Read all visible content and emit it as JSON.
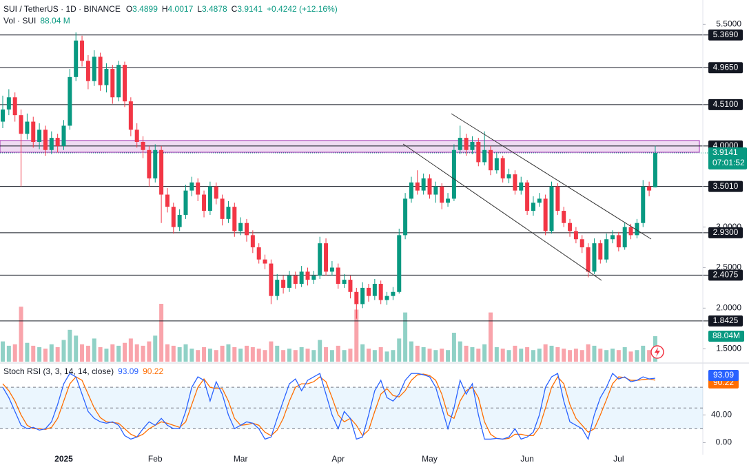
{
  "chart_data": [
    {
      "type": "candlestick",
      "symbol": "SUI / TetherUS · 1D · BINANCE",
      "header": [
        {
          "name": "O",
          "text": "3.4899"
        },
        {
          "name": "H",
          "text": "4.0017"
        },
        {
          "name": "L",
          "text": "3.4878"
        },
        {
          "name": "C",
          "text": "3.9141"
        }
      ],
      "change": "+0.4242 (+12.16%)",
      "up_color": "#089981",
      "down_color": "#f23645",
      "ylim": [
        1.34,
        5.8
      ],
      "yticks": [
        {
          "value": 1.5,
          "label": "1.5000"
        },
        {
          "value": 2.0,
          "label": "2.0000"
        },
        {
          "value": 2.5,
          "label": "2.5000"
        },
        {
          "value": 3.0,
          "label": "3.0000"
        },
        {
          "value": 5.5,
          "label": "5.5000"
        }
      ],
      "levels": [
        {
          "value": 5.369,
          "label": "5.3690"
        },
        {
          "value": 4.965,
          "label": "4.9650"
        },
        {
          "value": 4.51,
          "label": "4.5100"
        },
        {
          "value": 4.0,
          "label": "4.0000"
        },
        {
          "value": 3.501,
          "label": "3.5010"
        },
        {
          "value": 2.93,
          "label": "2.9300"
        },
        {
          "value": 2.4075,
          "label": "2.4075"
        },
        {
          "value": 1.8425,
          "label": "1.8425"
        }
      ],
      "last_price": {
        "value": 3.9141,
        "label": "3.9141",
        "countdown": "07:01:52"
      },
      "categories": [
        null,
        null,
        null,
        null,
        null,
        null,
        null,
        null,
        null,
        null,
        "2025",
        null,
        null,
        null,
        null,
        null,
        null,
        null,
        null,
        null,
        null,
        null,
        null,
        null,
        null,
        "Feb",
        null,
        null,
        null,
        null,
        null,
        null,
        null,
        null,
        null,
        null,
        null,
        null,
        null,
        "Mar",
        null,
        null,
        null,
        null,
        null,
        null,
        null,
        null,
        null,
        null,
        null,
        null,
        null,
        null,
        null,
        "Apr",
        null,
        null,
        null,
        null,
        null,
        null,
        null,
        null,
        null,
        null,
        null,
        null,
        null,
        null,
        "May",
        null,
        null,
        null,
        null,
        null,
        null,
        null,
        null,
        null,
        null,
        null,
        null,
        null,
        null,
        null,
        "Jun",
        null,
        null,
        null,
        null,
        null,
        null,
        null,
        null,
        null,
        null,
        null,
        null,
        null,
        null,
        "Jul",
        null,
        null,
        null,
        null,
        null,
        null
      ],
      "ohlc": [
        [
          4.3,
          4.62,
          4.22,
          4.45
        ],
        [
          4.45,
          4.7,
          4.38,
          4.6
        ],
        [
          4.6,
          4.66,
          4.3,
          4.38
        ],
        [
          4.38,
          4.45,
          3.5,
          4.15
        ],
        [
          4.15,
          4.4,
          4.08,
          4.3
        ],
        [
          4.3,
          4.36,
          3.98,
          4.05
        ],
        [
          4.05,
          4.28,
          3.96,
          4.2
        ],
        [
          4.2,
          4.25,
          3.88,
          3.95
        ],
        [
          3.95,
          4.18,
          3.9,
          4.1
        ],
        [
          4.1,
          4.15,
          3.92,
          4.0
        ],
        [
          4.0,
          4.32,
          3.95,
          4.25
        ],
        [
          4.25,
          4.95,
          4.2,
          4.85
        ],
        [
          4.85,
          5.4,
          4.8,
          5.3
        ],
        [
          5.3,
          5.36,
          4.98,
          5.05
        ],
        [
          5.05,
          5.12,
          4.7,
          4.8
        ],
        [
          4.8,
          5.18,
          4.74,
          5.1
        ],
        [
          5.1,
          5.15,
          4.68,
          4.75
        ],
        [
          4.75,
          5.02,
          4.66,
          4.95
        ],
        [
          4.95,
          5.0,
          4.52,
          4.6
        ],
        [
          4.6,
          5.05,
          4.55,
          5.0
        ],
        [
          5.0,
          5.04,
          4.48,
          4.55
        ],
        [
          4.55,
          4.6,
          4.12,
          4.2
        ],
        [
          4.2,
          4.28,
          3.98,
          4.05
        ],
        [
          4.05,
          4.12,
          3.85,
          3.95
        ],
        [
          3.95,
          4.0,
          3.5,
          3.6
        ],
        [
          3.6,
          4.02,
          3.55,
          3.95
        ],
        [
          3.95,
          4.0,
          3.05,
          3.4
        ],
        [
          3.4,
          3.48,
          3.18,
          3.25
        ],
        [
          3.25,
          3.3,
          2.92,
          3.0
        ],
        [
          3.0,
          3.22,
          2.95,
          3.15
        ],
        [
          3.15,
          3.52,
          3.1,
          3.45
        ],
        [
          3.45,
          3.62,
          3.38,
          3.55
        ],
        [
          3.55,
          3.6,
          3.32,
          3.4
        ],
        [
          3.4,
          3.45,
          3.12,
          3.2
        ],
        [
          3.2,
          3.56,
          3.15,
          3.5
        ],
        [
          3.5,
          3.55,
          3.28,
          3.35
        ],
        [
          3.35,
          3.4,
          3.02,
          3.1
        ],
        [
          3.1,
          3.32,
          3.05,
          3.25
        ],
        [
          3.25,
          3.3,
          2.88,
          2.95
        ],
        [
          2.95,
          3.12,
          2.9,
          3.05
        ],
        [
          3.05,
          3.1,
          2.82,
          2.9
        ],
        [
          2.9,
          2.96,
          2.68,
          2.75
        ],
        [
          2.75,
          2.8,
          2.55,
          2.6
        ],
        [
          2.6,
          2.66,
          2.48,
          2.55
        ],
        [
          2.55,
          2.6,
          2.05,
          2.15
        ],
        [
          2.15,
          2.42,
          2.1,
          2.35
        ],
        [
          2.35,
          2.4,
          2.18,
          2.25
        ],
        [
          2.25,
          2.46,
          2.2,
          2.4
        ],
        [
          2.4,
          2.45,
          2.24,
          2.3
        ],
        [
          2.3,
          2.52,
          2.26,
          2.45
        ],
        [
          2.45,
          2.5,
          2.28,
          2.35
        ],
        [
          2.35,
          2.46,
          2.3,
          2.4
        ],
        [
          2.4,
          2.88,
          2.36,
          2.8
        ],
        [
          2.8,
          2.86,
          2.4,
          2.45
        ],
        [
          2.45,
          2.58,
          2.4,
          2.5
        ],
        [
          2.5,
          2.55,
          2.24,
          2.3
        ],
        [
          2.3,
          2.42,
          2.25,
          2.35
        ],
        [
          2.35,
          2.4,
          2.12,
          2.2
        ],
        [
          2.2,
          2.25,
          1.87,
          2.05
        ],
        [
          2.05,
          2.32,
          2.0,
          2.25
        ],
        [
          2.25,
          2.3,
          2.08,
          2.15
        ],
        [
          2.15,
          2.36,
          2.1,
          2.3
        ],
        [
          2.3,
          2.34,
          2.05,
          2.1
        ],
        [
          2.1,
          2.2,
          2.04,
          2.15
        ],
        [
          2.15,
          2.26,
          2.1,
          2.2
        ],
        [
          2.2,
          2.98,
          2.18,
          2.9
        ],
        [
          2.9,
          3.42,
          2.85,
          3.35
        ],
        [
          3.35,
          3.62,
          3.3,
          3.55
        ],
        [
          3.55,
          3.7,
          3.4,
          3.45
        ],
        [
          3.45,
          3.66,
          3.4,
          3.6
        ],
        [
          3.6,
          3.65,
          3.35,
          3.4
        ],
        [
          3.4,
          3.56,
          3.3,
          3.5
        ],
        [
          3.5,
          3.54,
          3.22,
          3.3
        ],
        [
          3.3,
          3.42,
          3.25,
          3.35
        ],
        [
          3.35,
          4.02,
          3.32,
          3.95
        ],
        [
          3.95,
          4.25,
          3.9,
          4.1
        ],
        [
          4.1,
          4.15,
          3.88,
          3.95
        ],
        [
          3.95,
          4.12,
          3.9,
          4.05
        ],
        [
          4.05,
          4.1,
          3.75,
          3.8
        ],
        [
          3.8,
          4.18,
          3.76,
          3.95
        ],
        [
          3.95,
          4.0,
          3.64,
          3.7
        ],
        [
          3.7,
          3.92,
          3.66,
          3.85
        ],
        [
          3.85,
          3.88,
          3.55,
          3.6
        ],
        [
          3.6,
          3.72,
          3.54,
          3.65
        ],
        [
          3.65,
          3.7,
          3.4,
          3.45
        ],
        [
          3.45,
          3.62,
          3.4,
          3.55
        ],
        [
          3.55,
          3.58,
          3.15,
          3.2
        ],
        [
          3.2,
          3.38,
          3.14,
          3.3
        ],
        [
          3.3,
          3.42,
          3.25,
          3.35
        ],
        [
          3.35,
          3.4,
          2.9,
          2.95
        ],
        [
          2.95,
          3.56,
          2.92,
          3.5
        ],
        [
          3.5,
          3.54,
          3.15,
          3.2
        ],
        [
          3.2,
          3.25,
          3.0,
          3.05
        ],
        [
          3.05,
          3.1,
          2.88,
          2.95
        ],
        [
          2.95,
          3.0,
          2.8,
          2.85
        ],
        [
          2.85,
          2.9,
          2.68,
          2.75
        ],
        [
          2.75,
          2.8,
          2.38,
          2.45
        ],
        [
          2.45,
          2.86,
          2.42,
          2.8
        ],
        [
          2.8,
          2.84,
          2.55,
          2.6
        ],
        [
          2.6,
          2.92,
          2.56,
          2.85
        ],
        [
          2.85,
          2.96,
          2.8,
          2.9
        ],
        [
          2.9,
          2.94,
          2.7,
          2.75
        ],
        [
          2.75,
          3.06,
          2.72,
          3.0
        ],
        [
          3.0,
          3.04,
          2.85,
          2.9
        ],
        [
          2.9,
          3.1,
          2.86,
          3.05
        ],
        [
          3.05,
          3.58,
          3.0,
          3.5
        ],
        [
          3.5,
          3.56,
          3.38,
          3.45
        ],
        [
          3.4899,
          4.0017,
          3.4878,
          3.9141
        ]
      ],
      "volume": {
        "name": "Vol · SUI",
        "last_label": "88.04 M",
        "badge": "88.04M",
        "vlim": [
          0,
          1250
        ],
        "values": [
          70,
          55,
          60,
          190,
          65,
          55,
          50,
          45,
          60,
          50,
          75,
          110,
          90,
          60,
          55,
          80,
          50,
          45,
          60,
          55,
          65,
          80,
          60,
          55,
          70,
          90,
          200,
          60,
          55,
          50,
          60,
          45,
          40,
          50,
          45,
          40,
          55,
          60,
          50,
          45,
          55,
          50,
          45,
          40,
          70,
          55,
          40,
          45,
          40,
          50,
          45,
          40,
          75,
          50,
          40,
          55,
          40,
          45,
          180,
          60,
          45,
          40,
          50,
          35,
          40,
          80,
          170,
          70,
          55,
          50,
          45,
          40,
          45,
          40,
          100,
          70,
          55,
          50,
          45,
          60,
          170,
          50,
          45,
          40,
          55,
          45,
          50,
          40,
          45,
          60,
          55,
          50,
          45,
          40,
          45,
          40,
          60,
          55,
          45,
          40,
          45,
          40,
          50,
          35,
          40,
          55,
          40,
          88.04
        ]
      }
    },
    {
      "type": "line",
      "title": "Stoch RSI (3, 3, 14, 14, close)",
      "ylim": [
        -17.5,
        112
      ],
      "yticks": [
        {
          "value": 0,
          "label": "0.00"
        },
        {
          "value": 40,
          "label": "40.00"
        }
      ],
      "band_lines": [
        80,
        50,
        20
      ],
      "series": [
        {
          "name": "K",
          "color": "#2962ff",
          "values": [
            80,
            65,
            45,
            25,
            20,
            22,
            18,
            20,
            30,
            55,
            85,
            100,
            95,
            70,
            45,
            35,
            30,
            28,
            30,
            25,
            10,
            5,
            8,
            20,
            30,
            25,
            35,
            25,
            20,
            20,
            45,
            80,
            95,
            90,
            60,
            88,
            70,
            40,
            20,
            25,
            30,
            28,
            20,
            5,
            8,
            35,
            60,
            85,
            92,
            75,
            90,
            95,
            100,
            70,
            40,
            20,
            45,
            35,
            5,
            8,
            40,
            75,
            90,
            65,
            60,
            70,
            90,
            100,
            100,
            98,
            95,
            80,
            50,
            20,
            50,
            90,
            70,
            85,
            40,
            5,
            5,
            6,
            5,
            8,
            20,
            5,
            8,
            15,
            40,
            80,
            95,
            100,
            60,
            30,
            25,
            20,
            5,
            40,
            65,
            80,
            100,
            92,
            95,
            88,
            90,
            95,
            92,
            93.09
          ]
        },
        {
          "name": "D",
          "color": "#ff6d00",
          "values": [
            85,
            75,
            60,
            40,
            25,
            20,
            20,
            19,
            22,
            35,
            60,
            85,
            95,
            90,
            70,
            50,
            36,
            30,
            29,
            28,
            20,
            12,
            8,
            12,
            20,
            25,
            30,
            28,
            25,
            22,
            30,
            55,
            80,
            92,
            80,
            78,
            78,
            60,
            35,
            25,
            26,
            28,
            25,
            15,
            10,
            18,
            35,
            60,
            80,
            85,
            85,
            88,
            95,
            88,
            65,
            40,
            30,
            35,
            25,
            10,
            18,
            45,
            70,
            78,
            68,
            66,
            75,
            90,
            98,
            99,
            97,
            90,
            70,
            40,
            35,
            60,
            75,
            80,
            65,
            30,
            12,
            6,
            5,
            6,
            12,
            12,
            10,
            10,
            22,
            50,
            80,
            95,
            85,
            55,
            35,
            25,
            15,
            20,
            40,
            62,
            85,
            95,
            94,
            90,
            90,
            91,
            92,
            90.22
          ]
        }
      ]
    }
  ]
}
